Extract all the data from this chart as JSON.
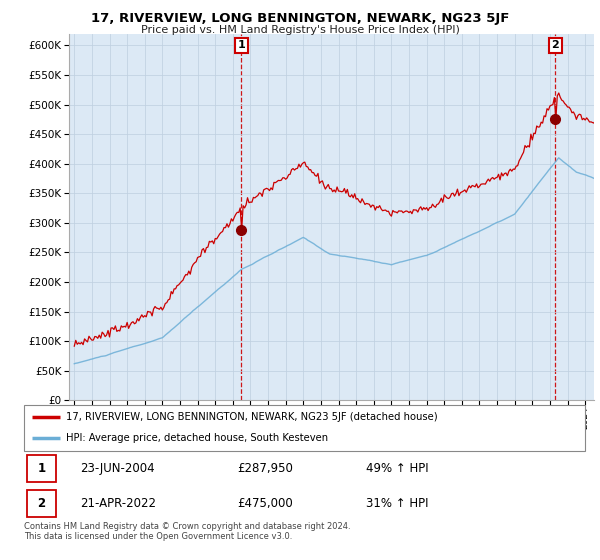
{
  "title": "17, RIVERVIEW, LONG BENNINGTON, NEWARK, NG23 5JF",
  "subtitle": "Price paid vs. HM Land Registry's House Price Index (HPI)",
  "ylim": [
    0,
    620000
  ],
  "yticks": [
    0,
    50000,
    100000,
    150000,
    200000,
    250000,
    300000,
    350000,
    400000,
    450000,
    500000,
    550000,
    600000
  ],
  "hpi_color": "#6baed6",
  "price_color": "#cc0000",
  "marker_color": "#cc0000",
  "chart_bg": "#dce9f5",
  "sale1_date": 2004.48,
  "sale1_price": 287950,
  "sale2_date": 2022.31,
  "sale2_price": 475000,
  "legend_label_price": "17, RIVERVIEW, LONG BENNINGTON, NEWARK, NG23 5JF (detached house)",
  "legend_label_hpi": "HPI: Average price, detached house, South Kesteven",
  "footer": "Contains HM Land Registry data © Crown copyright and database right 2024.\nThis data is licensed under the Open Government Licence v3.0.",
  "background_color": "#ffffff",
  "grid_color": "#c0d0e0"
}
